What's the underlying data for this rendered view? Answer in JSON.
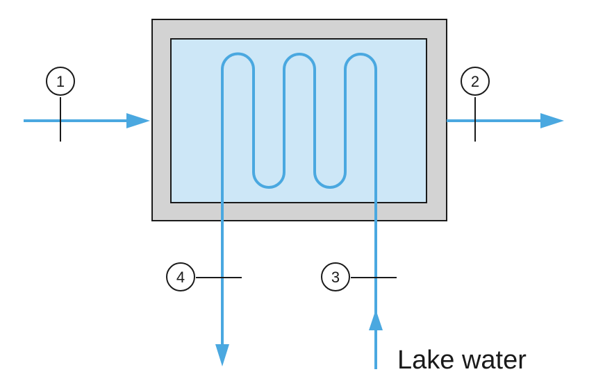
{
  "diagram": {
    "states": [
      {
        "label": "1"
      },
      {
        "label": "2"
      },
      {
        "label": "3"
      },
      {
        "label": "4"
      }
    ],
    "inlet_caption": "Lake water"
  },
  "colors": {
    "flow": "#4aa8e0",
    "casing": "#d3d3d3",
    "inner": "#cde7f7",
    "stroke": "#1a1a1a"
  }
}
